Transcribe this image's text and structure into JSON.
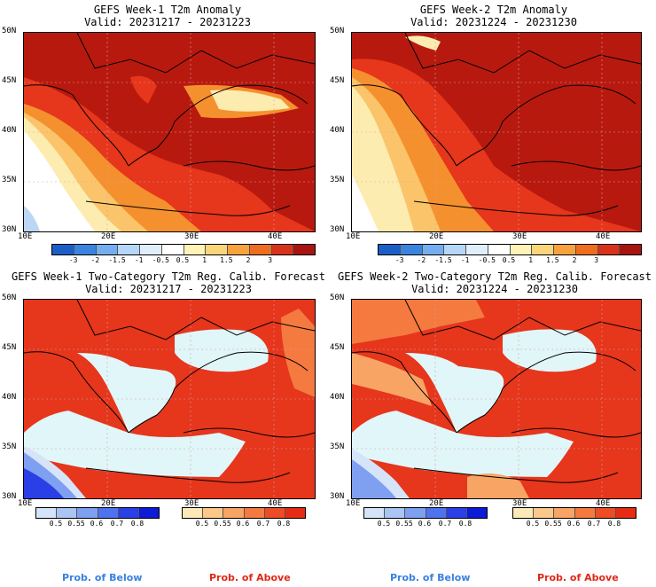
{
  "panels": [
    {
      "title": "GEFS Week-1 T2m Anomaly",
      "valid": "Valid: 20231217 - 20231223"
    },
    {
      "title": "GEFS Week-2 T2m Anomaly",
      "valid": "Valid: 20231224 - 20231230"
    },
    {
      "title": "GEFS Week-1 Two-Category T2m Reg. Calib. Forecast",
      "valid": "Valid: 20231217 - 20231223"
    },
    {
      "title": "GEFS Week-2 Two-Category T2m Reg. Calib. Forecast",
      "valid": "Valid: 20231224 - 20231230"
    }
  ],
  "lat_labels": [
    "50N",
    "45N",
    "40N",
    "35N",
    "30N"
  ],
  "lon_labels": [
    "10E",
    "20E",
    "30E",
    "40E"
  ],
  "anomaly_colorbar": {
    "labels": [
      "-3",
      "-2",
      "-1.5",
      "-1",
      "-0.5",
      "0.5",
      "1",
      "1.5",
      "2",
      "3"
    ],
    "colors": [
      "#1a5fc8",
      "#3a84e0",
      "#74aef0",
      "#b5d6f7",
      "#e0eefb",
      "#ffffff",
      "#fff3b8",
      "#fbd57a",
      "#f7a23c",
      "#ee6d1e",
      "#d8321a",
      "#a8140f"
    ]
  },
  "prob_below": {
    "labels": [
      "0.5",
      "0.55",
      "0.6",
      "0.7",
      "0.8"
    ],
    "colors": [
      "#d6e4fa",
      "#aac4f3",
      "#7f9ff0",
      "#4f72ee",
      "#2a3fe6",
      "#0d1ad8"
    ]
  },
  "prob_above": {
    "labels": [
      "0.5",
      "0.55",
      "0.6",
      "0.7",
      "0.8"
    ],
    "colors": [
      "#fde9b8",
      "#fbc88a",
      "#f8a464",
      "#f47a40",
      "#ee4c24",
      "#e62c14"
    ]
  },
  "footer": {
    "below_label": "Prob. of Below",
    "above_label": "Prob. of Above",
    "below_color": "#3a7fe0",
    "above_color": "#e02818"
  },
  "colors": {
    "sea_light": "#e0f6f9",
    "deep_red": "#b8190f",
    "red": "#e6361c",
    "orange": "#f5902e",
    "light_orange": "#fbc46a",
    "yellow": "#fdecb0",
    "white": "#ffffff",
    "light_blue": "#bcd6f5",
    "blue": "#3c6fe0",
    "dark_blue": "#1a2fd0"
  }
}
